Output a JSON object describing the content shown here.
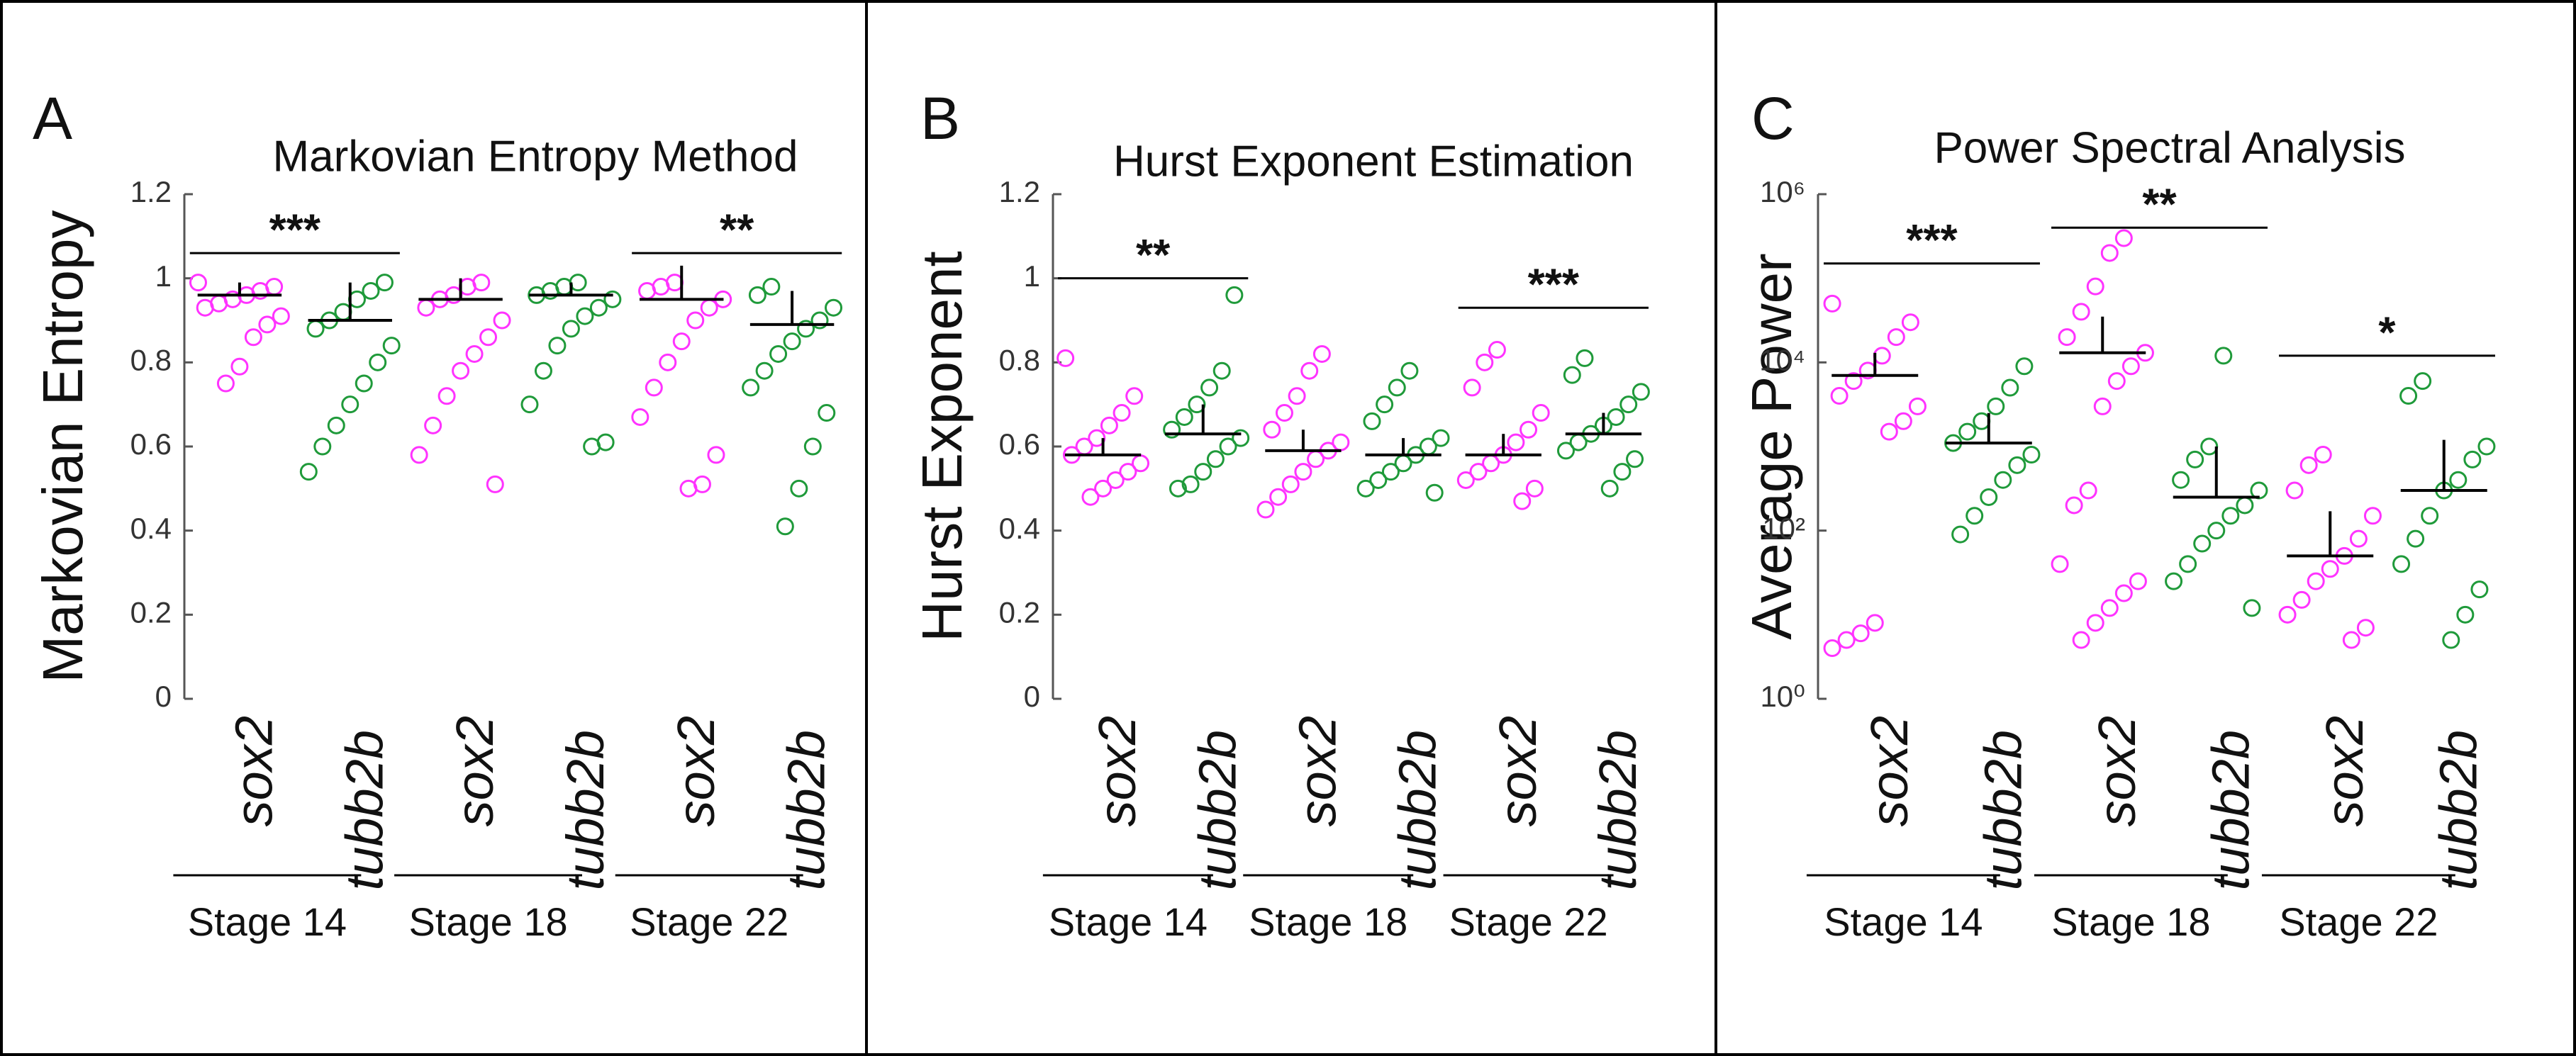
{
  "chart_data": [
    {
      "type": "strip",
      "panel_label": "A",
      "title": "Markovian Entropy Method",
      "ylabel": "Markovian Entropy",
      "ylim": [
        0,
        1.2
      ],
      "yticks": [
        0,
        0.2,
        0.4,
        0.6,
        0.8,
        1,
        1.2
      ],
      "log": false,
      "categories": [
        "sox2",
        "tubb2b",
        "sox2",
        "tubb2b",
        "sox2",
        "tubb2b"
      ],
      "stages": [
        "Stage 14",
        "Stage 18",
        "Stage 22"
      ],
      "colors": [
        "#ff33ff",
        "#1f9a3a",
        "#ff33ff",
        "#1f9a3a",
        "#ff33ff",
        "#1f9a3a"
      ],
      "points": [
        [
          0.99,
          0.98,
          0.97,
          0.96,
          0.95,
          0.94,
          0.93,
          0.91,
          0.89,
          0.86,
          0.79,
          0.75
        ],
        [
          0.99,
          0.97,
          0.95,
          0.92,
          0.9,
          0.88,
          0.84,
          0.8,
          0.75,
          0.7,
          0.65,
          0.6,
          0.54
        ],
        [
          0.99,
          0.98,
          0.96,
          0.95,
          0.93,
          0.9,
          0.86,
          0.82,
          0.78,
          0.72,
          0.65,
          0.58,
          0.51
        ],
        [
          0.99,
          0.98,
          0.97,
          0.96,
          0.95,
          0.93,
          0.91,
          0.88,
          0.84,
          0.78,
          0.7,
          0.61,
          0.6
        ],
        [
          0.99,
          0.98,
          0.97,
          0.95,
          0.93,
          0.9,
          0.85,
          0.8,
          0.74,
          0.67,
          0.58,
          0.51,
          0.5
        ],
        [
          0.98,
          0.96,
          0.93,
          0.9,
          0.88,
          0.85,
          0.82,
          0.78,
          0.74,
          0.68,
          0.6,
          0.5,
          0.41
        ]
      ],
      "medians": [
        0.96,
        0.9,
        0.95,
        0.96,
        0.95,
        0.89
      ],
      "upper": [
        0.99,
        0.99,
        1.0,
        0.99,
        1.03,
        0.97
      ],
      "significance": [
        {
          "label": "***",
          "from": 0,
          "to": 1,
          "y": 1.06
        },
        {
          "label": "**",
          "from": 4,
          "to": 5,
          "y": 1.06
        }
      ]
    },
    {
      "type": "strip",
      "panel_label": "B",
      "title": "Hurst Exponent Estimation",
      "ylabel": "Hurst Exponent",
      "ylim": [
        0,
        1.2
      ],
      "yticks": [
        0,
        0.2,
        0.4,
        0.6,
        0.8,
        1,
        1.2
      ],
      "log": false,
      "categories": [
        "sox2",
        "tubb2b",
        "sox2",
        "tubb2b",
        "sox2",
        "tubb2b"
      ],
      "stages": [
        "Stage 14",
        "Stage 18",
        "Stage 22"
      ],
      "colors": [
        "#ff33ff",
        "#1f9a3a",
        "#ff33ff",
        "#1f9a3a",
        "#ff33ff",
        "#1f9a3a"
      ],
      "points": [
        [
          0.81,
          0.72,
          0.68,
          0.65,
          0.62,
          0.6,
          0.58,
          0.56,
          0.54,
          0.52,
          0.5,
          0.48
        ],
        [
          0.96,
          0.78,
          0.74,
          0.7,
          0.67,
          0.64,
          0.62,
          0.6,
          0.57,
          0.54,
          0.51,
          0.5
        ],
        [
          0.82,
          0.78,
          0.72,
          0.68,
          0.64,
          0.61,
          0.59,
          0.57,
          0.54,
          0.51,
          0.48,
          0.45
        ],
        [
          0.78,
          0.74,
          0.7,
          0.66,
          0.62,
          0.6,
          0.58,
          0.56,
          0.54,
          0.52,
          0.5,
          0.49
        ],
        [
          0.83,
          0.8,
          0.74,
          0.68,
          0.64,
          0.61,
          0.58,
          0.56,
          0.54,
          0.52,
          0.5,
          0.47
        ],
        [
          0.81,
          0.77,
          0.73,
          0.7,
          0.67,
          0.65,
          0.63,
          0.61,
          0.59,
          0.57,
          0.54,
          0.5
        ]
      ],
      "medians": [
        0.58,
        0.63,
        0.59,
        0.58,
        0.58,
        0.63
      ],
      "upper": [
        0.62,
        0.7,
        0.64,
        0.62,
        0.63,
        0.68
      ],
      "significance": [
        {
          "label": "**",
          "from": 0,
          "to": 1,
          "y": 1.0
        },
        {
          "label": "***",
          "from": 4,
          "to": 5,
          "y": 0.93
        }
      ]
    },
    {
      "type": "strip",
      "panel_label": "C",
      "title": "Power Spectral Analysis",
      "ylabel": "Average Power",
      "ylim": [
        1,
        1000000
      ],
      "log": true,
      "yticks": [
        {
          "value": 1,
          "label": "10⁰"
        },
        {
          "value": 100,
          "label": "10²"
        },
        {
          "value": 10000,
          "label": "10⁴"
        },
        {
          "value": 1000000,
          "label": "10⁶"
        }
      ],
      "categories": [
        "sox2",
        "tubb2b",
        "sox2",
        "tubb2b",
        "sox2",
        "tubb2b"
      ],
      "stages": [
        "Stage 14",
        "Stage 18",
        "Stage 22"
      ],
      "colors": [
        "#ff33ff",
        "#1f9a3a",
        "#ff33ff",
        "#1f9a3a",
        "#ff33ff",
        "#1f9a3a"
      ],
      "points": [
        [
          50000,
          30000,
          20000,
          12000,
          8000,
          6000,
          4000,
          3000,
          2000,
          1500,
          8,
          6,
          5,
          4
        ],
        [
          9000,
          5000,
          3000,
          2000,
          1500,
          1100,
          800,
          600,
          400,
          250,
          150,
          90
        ],
        [
          300000,
          200000,
          80000,
          40000,
          20000,
          13000,
          9000,
          6000,
          3000,
          300,
          200,
          40,
          25,
          18,
          12,
          8,
          5
        ],
        [
          12000,
          1000,
          700,
          400,
          300,
          200,
          150,
          100,
          70,
          40,
          25,
          12
        ],
        [
          800,
          600,
          300,
          150,
          80,
          50,
          35,
          25,
          15,
          10,
          7,
          5
        ],
        [
          6000,
          4000,
          1000,
          700,
          400,
          300,
          150,
          80,
          40,
          20,
          10,
          5
        ]
      ],
      "medians": [
        7000,
        1100,
        13000,
        250,
        50,
        300
      ],
      "upper": [
        13000,
        2500,
        35000,
        1000,
        170,
        1200
      ],
      "significance": [
        {
          "label": "***",
          "from": 0,
          "to": 1,
          "y": 150000
        },
        {
          "label": "**",
          "from": 2,
          "to": 3,
          "y": 400000
        },
        {
          "label": "*",
          "from": 4,
          "to": 5,
          "y": 12000
        }
      ]
    }
  ]
}
